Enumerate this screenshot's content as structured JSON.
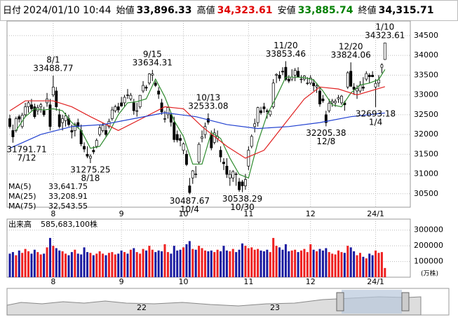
{
  "header": {
    "date_label": "日付",
    "date": "2024/01/10 10:44",
    "open_label": "始値",
    "open": "33,896.33",
    "high_label": "高値",
    "high": "34,323.61",
    "low_label": "安値",
    "low": "33,885.74",
    "close_label": "終値",
    "close": "34,315.71"
  },
  "chart_data": [
    {
      "type": "candlestick",
      "ylim": [
        30160,
        34870
      ],
      "yticks": [
        30500,
        31000,
        31500,
        32000,
        32500,
        33000,
        33500,
        34000,
        34500
      ],
      "grid": true,
      "up_color": "#ffffff",
      "down_color": "#000000",
      "xticks": [
        {
          "value": 14,
          "label": "8"
        },
        {
          "value": 36,
          "label": "9"
        },
        {
          "value": 56,
          "label": "10"
        },
        {
          "value": 77,
          "label": "11"
        },
        {
          "value": 97,
          "label": "12"
        },
        {
          "value": 118,
          "label": "24/1"
        }
      ],
      "ohlc": [
        [
          32400,
          32500,
          32150,
          32200
        ],
        [
          32100,
          32250,
          31791.71,
          31940
        ],
        [
          32100,
          32450,
          32050,
          32400
        ],
        [
          32450,
          32500,
          32300,
          32390
        ],
        [
          32200,
          32550,
          32150,
          32490
        ],
        [
          32500,
          32800,
          32450,
          32700
        ],
        [
          32700,
          32850,
          32550,
          32800
        ],
        [
          32750,
          32900,
          32600,
          32650
        ],
        [
          32700,
          32780,
          32400,
          32450
        ],
        [
          32600,
          32750,
          32500,
          32680
        ],
        [
          32700,
          32800,
          32550,
          32750
        ],
        [
          32600,
          32700,
          32450,
          32500
        ],
        [
          32800,
          33050,
          32700,
          32900
        ],
        [
          32750,
          32900,
          32100,
          32200
        ],
        [
          33000,
          33488.77,
          32950,
          33200
        ],
        [
          33100,
          33200,
          32600,
          32700
        ],
        [
          32500,
          32650,
          32150,
          32200
        ],
        [
          32300,
          32500,
          32100,
          32400
        ],
        [
          32350,
          32550,
          32200,
          32470
        ],
        [
          32400,
          32500,
          32200,
          32250
        ],
        [
          32100,
          32250,
          31900,
          32060
        ],
        [
          32100,
          32300,
          31950,
          32250
        ],
        [
          32300,
          32400,
          32150,
          32200
        ],
        [
          32100,
          32250,
          31700,
          31760
        ],
        [
          31700,
          31800,
          31550,
          31630
        ],
        [
          31500,
          31700,
          31400,
          31450
        ],
        [
          31400,
          31500,
          31275.25,
          31450
        ],
        [
          31600,
          31700,
          31500,
          31560
        ],
        [
          31700,
          31900,
          31650,
          31850
        ],
        [
          32000,
          32250,
          31950,
          32170
        ],
        [
          32100,
          32300,
          32050,
          32230
        ],
        [
          32100,
          32250,
          31950,
          32000
        ],
        [
          32200,
          32400,
          32150,
          32330
        ],
        [
          32400,
          32700,
          32350,
          32620
        ],
        [
          32600,
          32750,
          32550,
          32700
        ],
        [
          32700,
          32800,
          32550,
          32620
        ],
        [
          32800,
          32950,
          32700,
          32720
        ],
        [
          32800,
          33000,
          32700,
          32940
        ],
        [
          33000,
          33150,
          32900,
          32990
        ],
        [
          32900,
          33050,
          32850,
          32990
        ],
        [
          32800,
          32900,
          32500,
          32600
        ],
        [
          32600,
          32800,
          32450,
          32600
        ],
        [
          32700,
          33000,
          32650,
          32990
        ],
        [
          33100,
          33350,
          33050,
          33240
        ],
        [
          33200,
          33250,
          33100,
          33170
        ],
        [
          33300,
          33550,
          33250,
          33530
        ],
        [
          33500,
          33634.31,
          33350,
          33530
        ],
        [
          33300,
          33350,
          33200,
          33240
        ],
        [
          33100,
          33200,
          32900,
          33020
        ],
        [
          32800,
          32900,
          32500,
          32570
        ],
        [
          32400,
          32600,
          32300,
          32400
        ],
        [
          32500,
          32700,
          32400,
          32680
        ],
        [
          32500,
          32550,
          32200,
          32310
        ],
        [
          32300,
          32450,
          31800,
          31870
        ],
        [
          32000,
          32100,
          31800,
          31860
        ],
        [
          31900,
          32000,
          31700,
          31850
        ],
        [
          31600,
          31800,
          31500,
          31760
        ],
        [
          31500,
          31600,
          31200,
          31240
        ],
        [
          30700,
          30900,
          30487.67,
          30530
        ],
        [
          30900,
          31100,
          30750,
          31080
        ],
        [
          31000,
          31200,
          30900,
          30990
        ],
        [
          31300,
          31800,
          31250,
          31750
        ],
        [
          31900,
          32100,
          31800,
          31940
        ],
        [
          32000,
          32300,
          31900,
          32200
        ],
        [
          32400,
          32533.08,
          32250,
          32310
        ],
        [
          32000,
          32100,
          31600,
          31660
        ],
        [
          31800,
          32150,
          31750,
          32040
        ],
        [
          31900,
          32100,
          31800,
          31950
        ],
        [
          31600,
          31700,
          31300,
          31430
        ],
        [
          31300,
          31400,
          31100,
          31260
        ],
        [
          31200,
          31400,
          30900,
          30990
        ],
        [
          30900,
          31100,
          30700,
          30990
        ],
        [
          30900,
          31100,
          30800,
          31060
        ],
        [
          31000,
          31050,
          30700,
          30990
        ],
        [
          30800,
          30900,
          30550,
          30600
        ],
        [
          30800,
          30850,
          30538.29,
          30700
        ],
        [
          30700,
          31000,
          30600,
          30860
        ],
        [
          31200,
          31700,
          31100,
          31600
        ],
        [
          31700,
          32000,
          31650,
          31950
        ],
        [
          32200,
          32400,
          32050,
          32270
        ],
        [
          32300,
          32700,
          32200,
          32680
        ],
        [
          32600,
          32700,
          32500,
          32550
        ],
        [
          32700,
          32800,
          32550,
          32650
        ],
        [
          32600,
          32650,
          32400,
          32580
        ],
        [
          32500,
          32600,
          32450,
          32590
        ],
        [
          32700,
          33400,
          32650,
          33300
        ],
        [
          33500,
          33550,
          33300,
          33520
        ],
        [
          33500,
          33600,
          33350,
          33420
        ],
        [
          33600,
          33700,
          33500,
          33580
        ],
        [
          33700,
          33853.46,
          33350,
          33390
        ],
        [
          33400,
          33500,
          33300,
          33350
        ],
        [
          33400,
          33650,
          33350,
          33450
        ],
        [
          33500,
          33680,
          33350,
          33620
        ],
        [
          33600,
          33700,
          33450,
          33450
        ],
        [
          33400,
          33500,
          33300,
          33400
        ],
        [
          33400,
          33500,
          33350,
          33480
        ],
        [
          33300,
          33450,
          33250,
          33300
        ],
        [
          33300,
          33500,
          33250,
          33430
        ],
        [
          33300,
          33400,
          33100,
          33230
        ],
        [
          33200,
          33300,
          33050,
          33230
        ],
        [
          33100,
          33200,
          32700,
          32770
        ],
        [
          32900,
          33000,
          32800,
          32850
        ],
        [
          32500,
          32600,
          32205.38,
          32300
        ],
        [
          32600,
          32900,
          32550,
          32790
        ],
        [
          32800,
          32900,
          32700,
          32840
        ],
        [
          32800,
          32900,
          32700,
          32840
        ],
        [
          32900,
          33000,
          32800,
          32930
        ],
        [
          32800,
          33000,
          32750,
          32970
        ],
        [
          32800,
          32850,
          32600,
          32750
        ],
        [
          33200,
          33600,
          33150,
          33560
        ],
        [
          33600,
          33824.06,
          33200,
          33220
        ],
        [
          33200,
          33300,
          33000,
          33140
        ],
        [
          33100,
          33250,
          32900,
          33160
        ],
        [
          33100,
          33350,
          33050,
          33250
        ],
        [
          33200,
          33450,
          33100,
          33170
        ],
        [
          33400,
          33600,
          33350,
          33540
        ],
        [
          33500,
          33550,
          33300,
          33460
        ],
        [
          33500,
          33600,
          33450,
          33460
        ],
        [
          33200,
          33400,
          32693.18,
          33290
        ],
        [
          33300,
          33500,
          33200,
          33380
        ],
        [
          33700,
          33800,
          33550,
          33760
        ],
        [
          33896.33,
          34323.61,
          33885.74,
          34315.71
        ]
      ],
      "series": [
        {
          "name": "MA(5)",
          "latest": "33,641.75",
          "color": "#2e8b2e",
          "x": [
            2,
            5,
            8,
            11,
            14,
            17,
            20,
            23,
            26,
            29,
            32,
            35,
            38,
            41,
            44,
            47,
            50,
            53,
            56,
            59,
            62,
            65,
            68,
            71,
            74,
            77,
            80,
            83,
            86,
            89,
            92,
            95,
            98,
            101,
            104,
            107,
            110,
            113,
            116,
            119,
            121
          ],
          "values": [
            32100,
            32450,
            32650,
            32620,
            32650,
            32600,
            32300,
            32100,
            31650,
            31700,
            32050,
            32500,
            32800,
            32830,
            32900,
            33400,
            32950,
            32350,
            31950,
            31250,
            31250,
            32050,
            31900,
            31400,
            30990,
            30900,
            31800,
            32500,
            32950,
            33450,
            33450,
            33440,
            33380,
            33100,
            32750,
            32700,
            33050,
            33250,
            33300,
            33390,
            33642
          ]
        },
        {
          "name": "MA(25)",
          "latest": "33,208.91",
          "color": "#e02020",
          "x": [
            0,
            5,
            14,
            20,
            26,
            35,
            45,
            50,
            56,
            62,
            70,
            76,
            82,
            88,
            95,
            100,
            106,
            112,
            121
          ],
          "values": [
            32600,
            32850,
            32850,
            32700,
            32450,
            32100,
            32500,
            32700,
            32650,
            32200,
            31700,
            31400,
            31600,
            32200,
            32900,
            33200,
            33150,
            33000,
            33209
          ]
        },
        {
          "name": "MA(75)",
          "latest": "32,543.55",
          "color": "#2040d0",
          "x": [
            0,
            10,
            20,
            30,
            40,
            50,
            60,
            70,
            80,
            90,
            100,
            110,
            121
          ],
          "values": [
            31650,
            32000,
            32200,
            32250,
            32400,
            32550,
            32450,
            32250,
            32150,
            32200,
            32300,
            32450,
            32543
          ]
        }
      ],
      "annotations": [
        {
          "index": 1,
          "value": 31791.71,
          "date": "7/12"
        },
        {
          "index": 14,
          "value": 33488.77,
          "date": "8/1"
        },
        {
          "index": 26,
          "value": 31275.25,
          "date": "8/18"
        },
        {
          "index": 46,
          "value": 33634.31,
          "date": "9/15"
        },
        {
          "index": 58,
          "value": 30487.67,
          "date": "10/4"
        },
        {
          "index": 64,
          "value": 32533.08,
          "date": "10/13"
        },
        {
          "index": 75,
          "value": 30538.29,
          "date": "10/30"
        },
        {
          "index": 89,
          "value": 33853.46,
          "date": "11/20"
        },
        {
          "index": 102,
          "value": 32205.38,
          "date": "12/8"
        },
        {
          "index": 110,
          "value": 33824.06,
          "date": "12/20"
        },
        {
          "index": 118,
          "value": 32693.18,
          "date": "1/4"
        },
        {
          "index": 121,
          "value": 34323.61,
          "date": "1/10"
        }
      ]
    },
    {
      "type": "bar",
      "title": "出来高",
      "total_label": "585,683,100株",
      "unit": "(万株)",
      "ylim": [
        0,
        370000
      ],
      "yticks": [
        100000,
        200000,
        300000
      ],
      "grid": true,
      "up_color": "#ee2020",
      "down_color": "#1a1aa0",
      "values": [
        150000,
        160000,
        140000,
        170000,
        155000,
        180000,
        165000,
        150000,
        175000,
        160000,
        145000,
        150000,
        190000,
        250000,
        200000,
        185000,
        170000,
        165000,
        150000,
        140000,
        160000,
        175000,
        150000,
        145000,
        190000,
        160000,
        155000,
        140000,
        150000,
        165000,
        150000,
        140000,
        155000,
        160000,
        145000,
        150000,
        170000,
        160000,
        150000,
        175000,
        185000,
        160000,
        150000,
        180000,
        170000,
        200000,
        175000,
        160000,
        170000,
        165000,
        210000,
        160000,
        150000,
        200000,
        170000,
        175000,
        190000,
        210000,
        230000,
        180000,
        175000,
        200000,
        185000,
        170000,
        165000,
        170000,
        160000,
        175000,
        165000,
        200000,
        170000,
        165000,
        180000,
        160000,
        175000,
        215000,
        200000,
        185000,
        190000,
        175000,
        180000,
        170000,
        165000,
        175000,
        160000,
        250000,
        200000,
        190000,
        175000,
        210000,
        165000,
        170000,
        175000,
        160000,
        170000,
        180000,
        160000,
        210000,
        175000,
        165000,
        180000,
        170000,
        185000,
        160000,
        150000,
        145000,
        170000,
        160000,
        155000,
        200000,
        190000,
        165000,
        140000,
        155000,
        130000,
        120000,
        150000,
        140000,
        170000,
        155000,
        160000,
        58568
      ]
    }
  ],
  "navigator": {
    "labels": [
      "22",
      "23"
    ]
  }
}
